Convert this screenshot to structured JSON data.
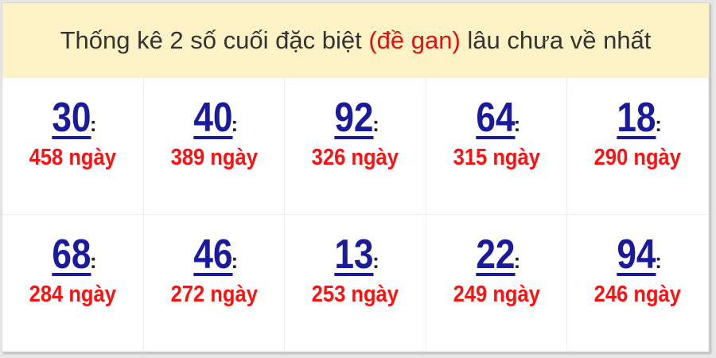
{
  "header": {
    "title_before": "Thống kê 2 số cuối đặc biệt ",
    "title_highlight": "(đề gan)",
    "title_after": " lâu chưa về nhất"
  },
  "colors": {
    "header_bg": "#fdf2c6",
    "number": "#1a1a9c",
    "days": "#ff1010",
    "highlight": "#e01010"
  },
  "items": [
    {
      "number": "30",
      "days": "458 ngày"
    },
    {
      "number": "40",
      "days": "389 ngày"
    },
    {
      "number": "92",
      "days": "326 ngày"
    },
    {
      "number": "64",
      "days": "315 ngày"
    },
    {
      "number": "18",
      "days": "290 ngày"
    },
    {
      "number": "68",
      "days": "284 ngày"
    },
    {
      "number": "46",
      "days": "272 ngày"
    },
    {
      "number": "13",
      "days": "253 ngày"
    },
    {
      "number": "22",
      "days": "249 ngày"
    },
    {
      "number": "94",
      "days": "246 ngày"
    }
  ],
  "separator": ":"
}
